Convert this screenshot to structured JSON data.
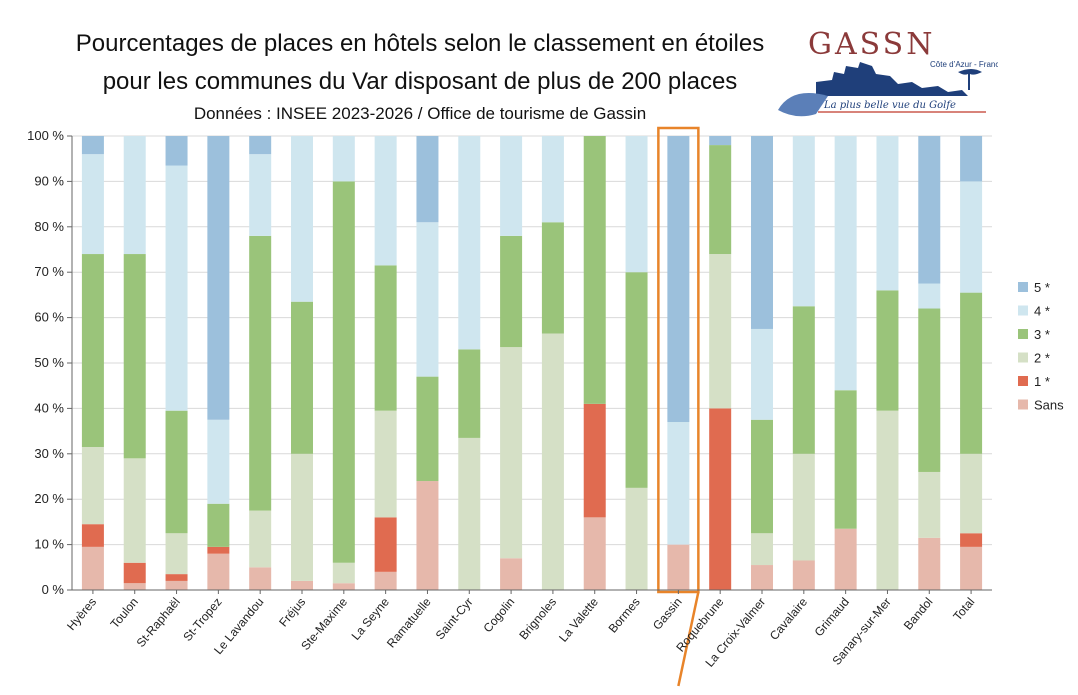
{
  "header": {
    "title_line1": "Pourcentages de places en hôtels selon le classement en étoiles",
    "title_line2": "pour les communes du Var disposant de plus de 200 places",
    "subtitle": "Données : INSEE 2023-2026 / Office de tourisme de Gassin"
  },
  "logo": {
    "name": "GASSN",
    "region": "Côte d’Azur - France",
    "slogan": "La plus belle vue du Golfe"
  },
  "colors": {
    "Sans": "#e6b8ab",
    "1*": "#e06b50",
    "2*": "#d5e0c6",
    "3*": "#9ac47a",
    "4*": "#cfe6ef",
    "5*": "#9cc0dc",
    "highlight": "#e8842a"
  },
  "chart_data": {
    "type": "bar",
    "stacked": true,
    "title": "Pourcentages de places en hôtels selon le classement en étoiles pour les communes du Var disposant de plus de 200 places",
    "ylim": [
      0,
      100
    ],
    "yticks": [
      "0 %",
      "10 %",
      "20 %",
      "30 %",
      "40 %",
      "50 %",
      "60 %",
      "70 %",
      "80 %",
      "90 %",
      "100 %"
    ],
    "highlight_category": "Gassin",
    "legend_position": "right",
    "categories": [
      "Hyères",
      "Toulon",
      "St-Raphaël",
      "St-Tropez",
      "Le Lavandou",
      "Fréjus",
      "Ste-Maxime",
      "La Seyne",
      "Ramatuelle",
      "Saint-Cyr",
      "Cogolin",
      "Brignoles",
      "La Valette",
      "Bormes",
      "Gassin",
      "Roquebrune",
      "La Croix-Valmer",
      "Cavalaire",
      "Grimaud",
      "Sanary-sur-Mer",
      "Bandol",
      "Total"
    ],
    "series": [
      {
        "name": "Sans",
        "values": [
          9.5,
          1.5,
          2,
          8,
          5,
          2,
          1.5,
          4,
          24,
          0,
          7,
          0,
          16,
          0,
          10,
          0,
          5.5,
          6.5,
          13.5,
          0,
          11.5,
          9.5
        ]
      },
      {
        "name": "1*",
        "values": [
          5,
          4.5,
          1.5,
          1.5,
          0,
          0,
          0,
          12,
          0,
          0,
          0,
          0,
          25,
          0,
          0,
          40,
          0,
          0,
          0,
          0,
          0,
          3
        ]
      },
      {
        "name": "2*",
        "values": [
          17,
          23,
          9,
          0,
          12.5,
          28,
          4.5,
          23.5,
          0,
          33.5,
          46.5,
          56.5,
          0,
          22.5,
          0,
          34,
          7,
          23.5,
          0,
          39.5,
          14.5,
          17.5
        ]
      },
      {
        "name": "3*",
        "values": [
          42.5,
          45,
          27,
          9.5,
          60.5,
          33.5,
          84,
          32,
          23,
          19.5,
          24.5,
          24.5,
          59,
          47.5,
          0,
          24,
          25,
          32.5,
          30.5,
          26.5,
          36,
          35.5
        ]
      },
      {
        "name": "4*",
        "values": [
          22,
          26,
          54,
          18.5,
          18,
          36.5,
          10,
          28.5,
          34,
          47,
          22,
          19,
          0,
          30,
          27,
          0,
          20,
          37.5,
          56,
          34,
          5.5,
          24.5
        ]
      },
      {
        "name": "5*",
        "values": [
          4,
          0,
          6.5,
          62.5,
          4,
          0,
          0,
          0,
          19,
          0,
          0,
          0,
          0,
          0,
          63,
          2,
          42.5,
          0,
          0,
          0,
          32.5,
          10
        ]
      }
    ],
    "legend_order": [
      "5*",
      "4*",
      "3*",
      "2*",
      "1*",
      "Sans"
    ],
    "legend_labels": [
      "5 *",
      "4 *",
      "3 *",
      "2 *",
      "1 *",
      "Sans"
    ]
  }
}
